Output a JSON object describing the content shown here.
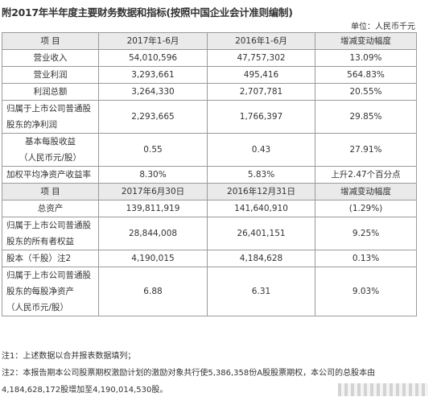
{
  "title": "附2017年半年度主要财务数据和指标(按照中国企业会计准则编制)",
  "unit": "单位：人民币千元",
  "table": {
    "header1": [
      "项  目",
      "2017年1-6月",
      "2016年1-6月",
      "增减变动幅度"
    ],
    "section1": [
      {
        "label": [
          "营业收入"
        ],
        "v1": "54,010,596",
        "v2": "47,757,302",
        "v3": "13.09%",
        "center": true
      },
      {
        "label": [
          "营业利润"
        ],
        "v1": "3,293,661",
        "v2": "495,416",
        "v3": "564.83%",
        "center": true
      },
      {
        "label": [
          "利润总额"
        ],
        "v1": "3,264,330",
        "v2": "2,707,781",
        "v3": "20.55%",
        "center": true
      },
      {
        "label": [
          "归属于上市公司普通股",
          "股东的净利润"
        ],
        "v1": "2,293,665",
        "v2": "1,766,397",
        "v3": "29.85%",
        "center": false
      },
      {
        "label": [
          "基本每股收益",
          "（人民币元/股）"
        ],
        "v1": "0.55",
        "v2": "0.43",
        "v3": "27.91%",
        "center": true
      },
      {
        "label": [
          "加权平均净资产收益率"
        ],
        "v1": "8.30%",
        "v2": "5.83%",
        "v3": "上升2.47个百分点",
        "center": false
      }
    ],
    "header2": [
      "项  目",
      "2017年6月30日",
      "2016年12月31日",
      "增减变动幅度"
    ],
    "section2": [
      {
        "label": [
          "总资产"
        ],
        "v1": "139,811,919",
        "v2": "141,640,910",
        "v3": "(1.29%)",
        "center": true
      },
      {
        "label": [
          "归属于上市公司普通股",
          "股东的所有者权益"
        ],
        "v1": "28,844,008",
        "v2": "26,401,151",
        "v3": "9.25%",
        "center": false
      },
      {
        "label": [
          "股本（千股）注2"
        ],
        "v1": "4,190,015",
        "v2": "4,184,628",
        "v3": "0.13%",
        "center": false
      },
      {
        "label": [
          "归属于上市公司普通股",
          "股东的每股净资产",
          "（人民币元/股）"
        ],
        "v1": "6.88",
        "v2": "6.31",
        "v3": "9.03%",
        "center": false
      }
    ]
  },
  "notes": [
    "注1：上述数据以合并报表数据填列；",
    "注2：本报告期本公司股票期权激励计划的激励对象共行使5,386,358份A股股票期权，本公司的总股本由",
    "4,184,628,172股增加至4,190,014,530股。"
  ]
}
